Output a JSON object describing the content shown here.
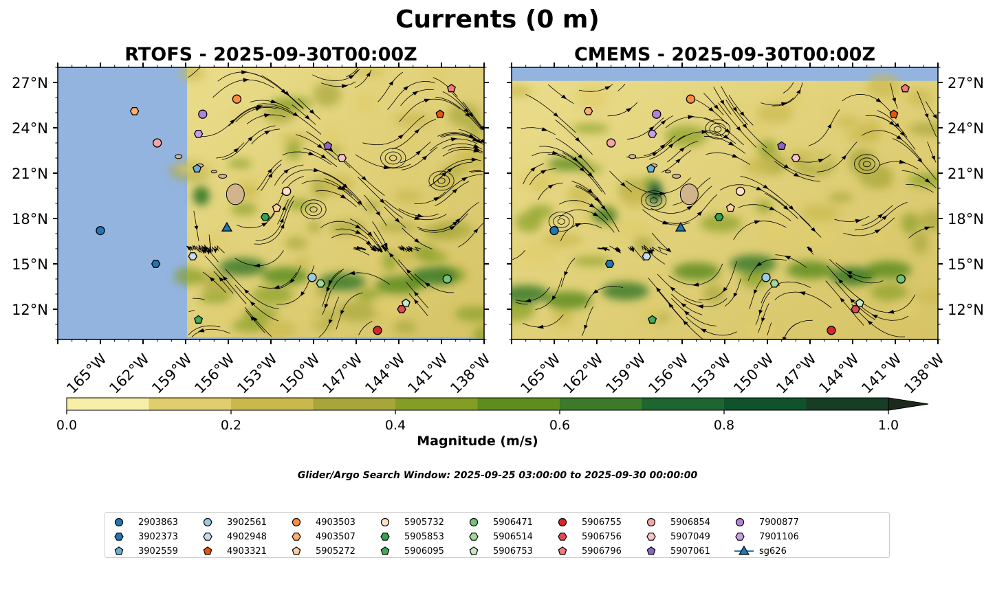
{
  "title": "Currents (0 m)",
  "panels": [
    {
      "title": "RTOFS - 2025-09-30T00:00Z",
      "model": "RTOFS"
    },
    {
      "title": "CMEMS - 2025-09-30T00:00Z",
      "model": "CMEMS"
    }
  ],
  "colorbar": {
    "label": "Magnitude (m/s)",
    "ticks": [
      "0.0",
      "0.2",
      "0.4",
      "0.6",
      "0.8",
      "1.0"
    ],
    "levels": [
      0.0,
      0.1,
      0.2,
      0.3,
      0.4,
      0.5,
      0.6,
      0.7,
      0.8,
      0.9,
      1.0
    ],
    "colors": [
      "#f7efa8",
      "#e0cd6e",
      "#c9b84c",
      "#a6a63a",
      "#849d24",
      "#5e8c1f",
      "#3a7a28",
      "#1e6530",
      "#0f522b",
      "#173d25",
      "#1c2a1c"
    ],
    "extend": "max"
  },
  "search_window": "Glider/Argo Search Window: 2025-09-25 03:00:00 to 2025-09-30 00:00:00",
  "colors": {
    "land": "#d2b48c",
    "ocean_nodata": "#94b4e0",
    "streamline": "#000000"
  },
  "chart_data": [
    {
      "type": "streamplot",
      "title": "RTOFS - 2025-09-30T00:00Z",
      "xlabel": "",
      "ylabel": "",
      "xlim": [
        -168,
        -138
      ],
      "ylim": [
        10,
        28
      ],
      "x_ticks": [
        "165°W",
        "162°W",
        "159°W",
        "156°W",
        "153°W",
        "150°W",
        "147°W",
        "144°W",
        "141°W",
        "138°W"
      ],
      "x_tick_values": [
        -165,
        -162,
        -159,
        -156,
        -153,
        -150,
        -147,
        -144,
        -141,
        -138
      ],
      "y_ticks": [
        "12°N",
        "15°N",
        "18°N",
        "21°N",
        "24°N",
        "27°N"
      ],
      "y_tick_values": [
        12,
        15,
        18,
        21,
        24,
        27
      ],
      "data_extent_lon": [
        -158.9,
        -138
      ]
    },
    {
      "type": "streamplot",
      "title": "CMEMS - 2025-09-30T00:00Z",
      "xlabel": "",
      "ylabel": "",
      "xlim": [
        -168,
        -138
      ],
      "ylim": [
        10,
        28
      ],
      "x_ticks": [
        "165°W",
        "162°W",
        "159°W",
        "156°W",
        "153°W",
        "150°W",
        "147°W",
        "144°W",
        "141°W",
        "138°W"
      ],
      "x_tick_values": [
        -165,
        -162,
        -159,
        -156,
        -153,
        -150,
        -147,
        -144,
        -141,
        -138
      ],
      "y_ticks": [
        "12°N",
        "15°N",
        "18°N",
        "21°N",
        "24°N",
        "27°N"
      ],
      "y_tick_values": [
        12,
        15,
        18,
        21,
        24,
        27
      ],
      "data_extent_lat": [
        10,
        27.1
      ]
    }
  ],
  "floats": [
    {
      "id": "2903863",
      "marker": "circle",
      "color": "#1f77b4",
      "lon": -165.0,
      "lat": 17.2
    },
    {
      "id": "3902373",
      "marker": "hexagon",
      "color": "#1f77b4",
      "lon": -161.1,
      "lat": 15.0
    },
    {
      "id": "3902559",
      "marker": "pentagon",
      "color": "#6baed6",
      "lon": -158.2,
      "lat": 21.3
    },
    {
      "id": "3902561",
      "marker": "circle",
      "color": "#9ecae1",
      "lon": -150.1,
      "lat": 14.1
    },
    {
      "id": "4902948",
      "marker": "hexagon",
      "color": "#c6dbef",
      "lon": -158.5,
      "lat": 15.5
    },
    {
      "id": "4903321",
      "marker": "pentagon",
      "color": "#e6550d",
      "lon": -141.1,
      "lat": 24.9
    },
    {
      "id": "4903503",
      "marker": "circle",
      "color": "#fd8d3c",
      "lon": -155.4,
      "lat": 25.9
    },
    {
      "id": "4903507",
      "marker": "hexagon",
      "color": "#fdae6b",
      "lon": -162.6,
      "lat": 25.1
    },
    {
      "id": "5905272",
      "marker": "pentagon",
      "color": "#fdd0a2",
      "lon": -152.6,
      "lat": 18.7
    },
    {
      "id": "5905732",
      "marker": "circle",
      "color": "#fde0c5",
      "lon": -151.9,
      "lat": 19.8
    },
    {
      "id": "5905853",
      "marker": "hexagon",
      "color": "#31a354",
      "lon": -153.4,
      "lat": 18.1
    },
    {
      "id": "5906095",
      "marker": "pentagon",
      "color": "#41ab5d",
      "lon": -158.1,
      "lat": 11.3
    },
    {
      "id": "5906471",
      "marker": "circle",
      "color": "#74c476",
      "lon": -140.6,
      "lat": 14.0
    },
    {
      "id": "5906514",
      "marker": "hexagon",
      "color": "#a1d99b",
      "lon": -149.5,
      "lat": 13.7
    },
    {
      "id": "5906753",
      "marker": "pentagon",
      "color": "#c7e9c0",
      "lon": -143.5,
      "lat": 12.4
    },
    {
      "id": "5906755",
      "marker": "circle",
      "color": "#d62728",
      "lon": -145.5,
      "lat": 10.6
    },
    {
      "id": "5906756",
      "marker": "hexagon",
      "color": "#e34a4f",
      "lon": -143.8,
      "lat": 12.0
    },
    {
      "id": "5906796",
      "marker": "pentagon",
      "color": "#f07a7c",
      "lon": -140.3,
      "lat": 26.6
    },
    {
      "id": "5906854",
      "marker": "circle",
      "color": "#f4a6a6",
      "lon": -161.0,
      "lat": 23.0
    },
    {
      "id": "5907049",
      "marker": "hexagon",
      "color": "#fbc4c4",
      "lon": -148.0,
      "lat": 22.0
    },
    {
      "id": "5907061",
      "marker": "pentagon",
      "color": "#8c65c7",
      "lon": -149.0,
      "lat": 22.8
    },
    {
      "id": "7900877",
      "marker": "circle",
      "color": "#b083dc",
      "lon": -157.8,
      "lat": 24.9
    },
    {
      "id": "7901106",
      "marker": "hexagon",
      "color": "#c9a0e8",
      "lon": -158.1,
      "lat": 23.6
    },
    {
      "id": "sg626",
      "marker": "triangle-line",
      "color": "#1f77b4",
      "lon": -156.1,
      "lat": 17.4
    }
  ]
}
